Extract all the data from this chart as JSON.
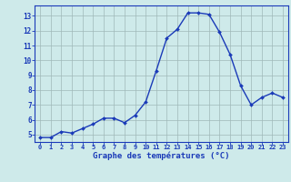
{
  "hours": [
    0,
    1,
    2,
    3,
    4,
    5,
    6,
    7,
    8,
    9,
    10,
    11,
    12,
    13,
    14,
    15,
    16,
    17,
    18,
    19,
    20,
    21,
    22,
    23
  ],
  "temps": [
    4.8,
    4.8,
    5.2,
    5.1,
    5.4,
    5.7,
    6.1,
    6.1,
    5.8,
    6.3,
    7.2,
    9.3,
    11.5,
    12.1,
    13.2,
    13.2,
    13.1,
    11.9,
    10.4,
    8.3,
    7.0,
    7.5,
    7.8,
    7.5
  ],
  "line_color": "#1a3ab8",
  "marker": "D",
  "marker_size": 2.0,
  "line_width": 1.0,
  "bg_color": "#ceeaea",
  "grid_color": "#a0b8b8",
  "xlabel": "Graphe des températures (°C)",
  "xlabel_color": "#1a3ab8",
  "tick_color": "#1a3ab8",
  "ylim": [
    4.5,
    13.7
  ],
  "yticks": [
    5,
    6,
    7,
    8,
    9,
    10,
    11,
    12,
    13
  ],
  "spine_color": "#1a3ab8"
}
